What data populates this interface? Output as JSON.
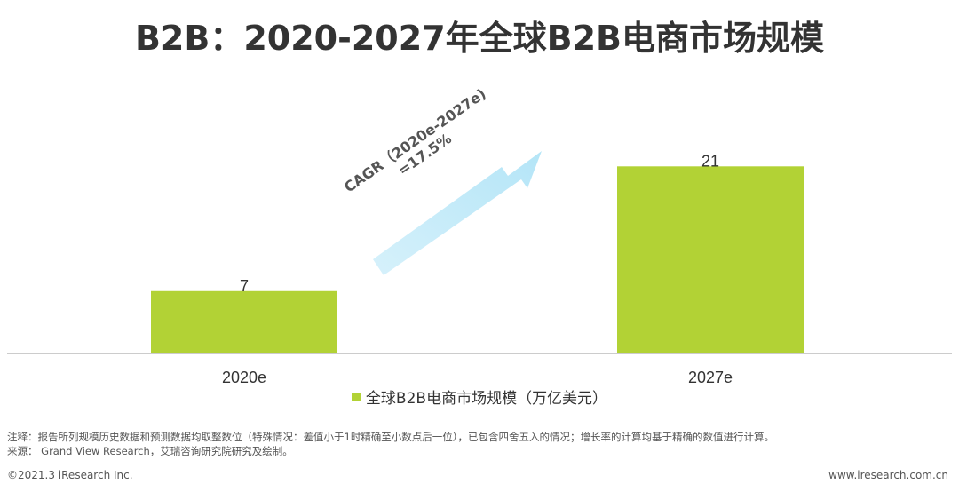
{
  "title": "B2B：2020-2027年全球B2B电商市场规模",
  "chart_data": {
    "type": "bar",
    "categories": [
      "2020e",
      "2027e"
    ],
    "series": [
      {
        "name": "全球B2B电商市场规模（万亿美元）",
        "values": [
          7,
          21
        ]
      }
    ],
    "ylim": [
      0,
      30
    ],
    "grid": false,
    "legend": "bottom",
    "bar_color": "#b2d235",
    "annotation": {
      "line1": "CAGR（2020e-2027e)",
      "line2": "=17.5%"
    }
  },
  "footnote": {
    "line1": "注释：报告所列规模历史数据和预测数据均取整数位（特殊情况：差值小于1时精确至小数点后一位），已包含四舍五入的情况；增长率的计算均基于精确的数值进行计算。",
    "line2": "来源： Grand View Research，艾瑞咨询研究院研究及绘制。"
  },
  "footer": {
    "left": "©2021.3 iResearch Inc.",
    "right": "www.iresearch.com.cn"
  }
}
